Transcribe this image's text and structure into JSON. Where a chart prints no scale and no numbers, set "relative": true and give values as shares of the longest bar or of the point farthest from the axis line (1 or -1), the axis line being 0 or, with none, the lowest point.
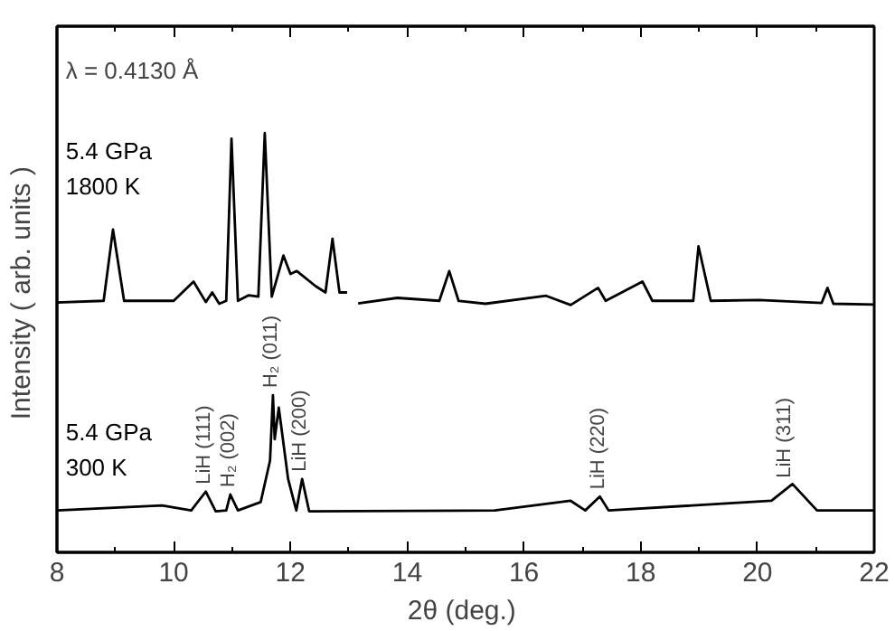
{
  "chart_data": {
    "type": "line",
    "relative": true,
    "xlabel": "2θ  (deg.)",
    "ylabel": "Intensity  ( arb. units )",
    "xlim": [
      8,
      22
    ],
    "xticks": [
      8,
      10,
      12,
      14,
      16,
      18,
      20,
      22
    ],
    "grid": false,
    "marker": "none",
    "line_style": "solid",
    "series": [
      {
        "name": "5.4 GPa\n1800 K",
        "color": "#000000",
        "x": [
          8,
          8.8,
          8.96,
          9.15,
          10.0,
          10.34,
          10.55,
          10.66,
          10.78,
          10.9,
          10.99,
          11.1,
          11.28,
          11.45,
          11.56,
          11.68,
          11.88,
          12.0,
          12.11,
          12.43,
          12.6,
          12.72,
          12.84,
          12.97,
          13.05,
          13.16,
          13.83,
          14.55,
          14.72,
          14.88,
          15.34,
          16.38,
          16.8,
          17.27,
          17.4,
          18.03,
          18.2,
          18.9,
          18.99,
          19.2,
          20.03,
          21.1,
          21.2,
          21.3,
          22
        ],
        "values": [
          0.596,
          0.6,
          0.77,
          0.6,
          0.6,
          0.646,
          0.597,
          0.62,
          0.593,
          0.6,
          0.987,
          0.6,
          0.613,
          0.61,
          1.0,
          0.61,
          0.708,
          0.664,
          0.671,
          0.635,
          0.62,
          0.748,
          0.62,
          0.62,
          null,
          0.594,
          0.607,
          0.6,
          0.671,
          0.6,
          0.593,
          0.612,
          0.59,
          0.631,
          0.6,
          0.646,
          0.6,
          0.6,
          0.73,
          0.6,
          0.602,
          0.595,
          0.631,
          0.593,
          0.591
        ]
      },
      {
        "name": "5.4 GPa\n300 K",
        "color": "#000000",
        "x": [
          8,
          9.8,
          10.3,
          10.55,
          10.72,
          10.9,
          10.97,
          11.1,
          11.49,
          11.65,
          11.7,
          11.73,
          11.8,
          11.96,
          12.1,
          12.2,
          12.32,
          15.5,
          16.8,
          17.05,
          17.3,
          17.45,
          20.24,
          20.6,
          21.02,
          22
        ],
        "values": [
          0.1,
          0.112,
          0.1,
          0.145,
          0.098,
          0.1,
          0.138,
          0.1,
          0.12,
          0.219,
          0.375,
          0.27,
          0.345,
          0.175,
          0.1,
          0.175,
          0.098,
          0.1,
          0.123,
          0.1,
          0.133,
          0.1,
          0.123,
          0.163,
          0.1,
          0.1
        ]
      }
    ],
    "annotations": [
      "λ = 0.4130  Å",
      {
        "text": "LiH (111)",
        "x": 10.55,
        "y": 0.145
      },
      {
        "text": "H₂ (002)",
        "x": 10.97,
        "y": 0.138
      },
      {
        "text": "H₂ (011)",
        "x": 11.7,
        "y": 0.375
      },
      {
        "text": "LiH (200)",
        "x": 12.2,
        "y": 0.175
      },
      {
        "text": "LiH (220)",
        "x": 17.3,
        "y": 0.133
      },
      {
        "text": "LiH (311)",
        "x": 20.5,
        "y": 0.16
      }
    ]
  }
}
